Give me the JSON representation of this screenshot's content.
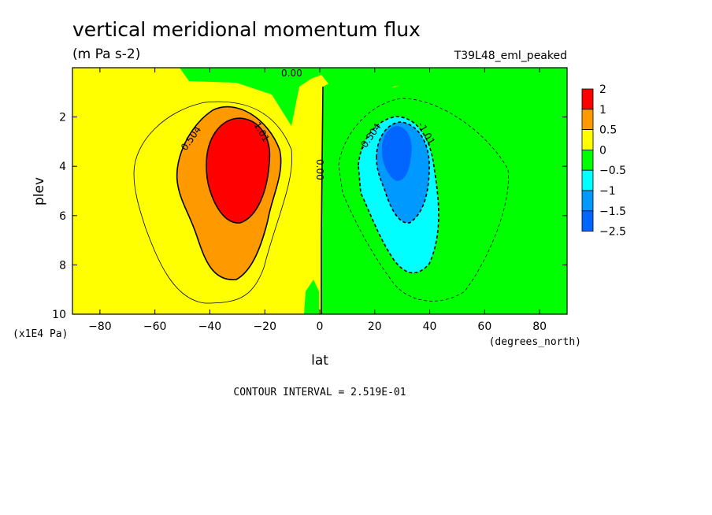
{
  "chart_data": {
    "type": "heatmap",
    "title": "vertical meridional momentum flux",
    "units": "(m Pa s-2)",
    "dataset": "T39L48_eml_peaked",
    "xlabel": "lat",
    "x_units": "(degrees_north)",
    "ylabel": "plev",
    "y_units": "(x1E4 Pa)",
    "xlim": [
      -90,
      90
    ],
    "ylim": [
      10,
      0
    ],
    "xticks": [
      -80,
      -60,
      -40,
      -20,
      0,
      20,
      40,
      60,
      80
    ],
    "xtick_labels": [
      "−80",
      "−60",
      "−40",
      "−20",
      "0",
      "20",
      "40",
      "60",
      "80"
    ],
    "yticks": [
      2,
      4,
      6,
      8,
      10
    ],
    "ytick_labels": [
      "2",
      "4",
      "6",
      "8",
      "10"
    ],
    "contour_interval_text": "CONTOUR INTERVAL = 2.519E-01",
    "contour_labels": [
      "0.504",
      "1.01",
      "0.00",
      "0.00",
      "-0.504",
      "-1.01"
    ],
    "colorbar": {
      "levels": [
        "2",
        "1",
        "0.5",
        "0",
        "−0.5",
        "−1",
        "−1.5",
        "−2.5"
      ],
      "colors": [
        "#ff0000",
        "#ff9900",
        "#ffff00",
        "#00ff00",
        "#00ffff",
        "#0099ff",
        "#0066ff"
      ]
    },
    "fill_colors": {
      "pos_high": "#ff0000",
      "pos_mid": "#ff9900",
      "pos_low": "#ffff00",
      "neg_low": "#00ff00",
      "neg_mid": "#00ffff",
      "neg_high": "#0099ff",
      "neg_max": "#0066ff"
    }
  }
}
